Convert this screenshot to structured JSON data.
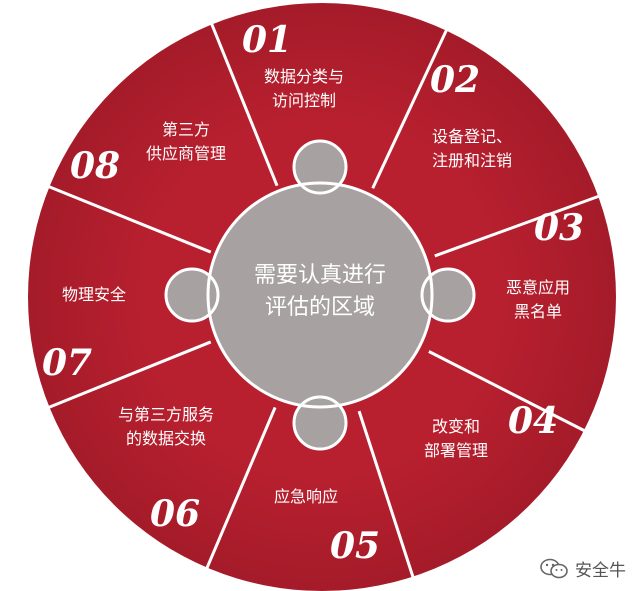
{
  "colors": {
    "ring": "#b8202f",
    "ring_dark": "#9c1a27",
    "divider": "#ffffff",
    "center": "#a8a1a1",
    "text": "#ffffff"
  },
  "center": {
    "lines": [
      "需要认真进行",
      "评估的区域"
    ]
  },
  "segments": [
    {
      "num": "01",
      "lines": [
        "数据分类与",
        "访问控制"
      ]
    },
    {
      "num": "02",
      "lines": [
        "设备登记、",
        "注册和注销"
      ]
    },
    {
      "num": "03",
      "lines": [
        "恶意应用",
        "黑名单"
      ]
    },
    {
      "num": "04",
      "lines": [
        "改变和",
        "部署管理"
      ]
    },
    {
      "num": "05",
      "lines": [
        "应急响应"
      ]
    },
    {
      "num": "06",
      "lines": [
        "与第三方服务",
        "的数据交换"
      ]
    },
    {
      "num": "07",
      "lines": [
        "物理安全"
      ]
    },
    {
      "num": "08",
      "lines": [
        "第三方",
        "供应商管理"
      ]
    }
  ],
  "watermark": {
    "icon": "wechat-icon",
    "text": "安全牛"
  }
}
